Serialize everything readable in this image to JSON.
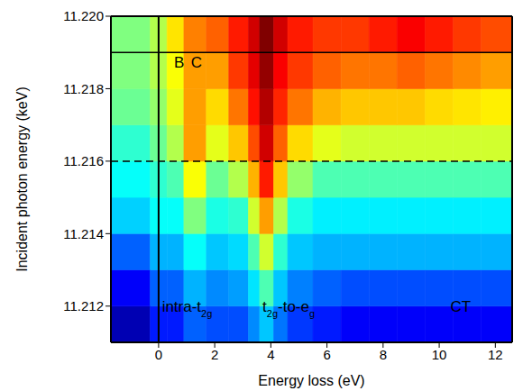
{
  "chart_data": {
    "type": "heatmap",
    "x_label": "Energy loss (eV)",
    "y_label": "Incident photon energy (keV)",
    "xlim": [
      -1.7,
      12.6
    ],
    "xticks": [
      0,
      2,
      4,
      6,
      8,
      10,
      12
    ],
    "ylim": [
      11.211,
      11.22
    ],
    "yticks": [
      11.212,
      11.214,
      11.216,
      11.218,
      {
        "value": 11.22,
        "label": "11.220"
      }
    ],
    "x_edges": [
      -1.7,
      -0.3,
      0.3,
      0.9,
      1.7,
      2.5,
      3.2,
      3.6,
      4.1,
      4.6,
      5.5,
      6.5,
      7.5,
      8.5,
      9.5,
      10.5,
      11.5,
      12.6
    ],
    "y_edges": [
      11.211,
      11.212,
      11.213,
      11.214,
      11.215,
      11.216,
      11.217,
      11.218,
      11.219,
      11.22
    ],
    "cells": [
      [
        0.05,
        0.15,
        0.15,
        0.22,
        0.2,
        0.2,
        0.26,
        0.32,
        0.24,
        0.18,
        0.15,
        0.12,
        0.12,
        0.12,
        0.12,
        0.12,
        0.12
      ],
      [
        0.12,
        0.22,
        0.22,
        0.3,
        0.26,
        0.28,
        0.35,
        0.45,
        0.32,
        0.25,
        0.22,
        0.2,
        0.2,
        0.2,
        0.2,
        0.2,
        0.2
      ],
      [
        0.22,
        0.3,
        0.3,
        0.38,
        0.32,
        0.34,
        0.45,
        0.58,
        0.42,
        0.32,
        0.3,
        0.3,
        0.3,
        0.3,
        0.3,
        0.3,
        0.3
      ],
      [
        0.33,
        0.38,
        0.38,
        0.5,
        0.4,
        0.42,
        0.58,
        0.72,
        0.55,
        0.4,
        0.36,
        0.36,
        0.36,
        0.36,
        0.36,
        0.36,
        0.36
      ],
      [
        0.38,
        0.42,
        0.45,
        0.62,
        0.48,
        0.55,
        0.7,
        0.85,
        0.68,
        0.52,
        0.45,
        0.45,
        0.45,
        0.45,
        0.45,
        0.45,
        0.45
      ],
      [
        0.42,
        0.48,
        0.55,
        0.72,
        0.6,
        0.68,
        0.8,
        0.92,
        0.78,
        0.66,
        0.6,
        0.58,
        0.58,
        0.58,
        0.58,
        0.58,
        0.58
      ],
      [
        0.48,
        0.52,
        0.6,
        0.72,
        0.66,
        0.76,
        0.86,
        0.95,
        0.84,
        0.76,
        0.7,
        0.68,
        0.68,
        0.68,
        0.66,
        0.65,
        0.64
      ],
      [
        0.5,
        0.55,
        0.62,
        0.72,
        0.72,
        0.82,
        0.9,
        0.98,
        0.88,
        0.82,
        0.78,
        0.76,
        0.76,
        0.78,
        0.76,
        0.74,
        0.72
      ],
      [
        0.5,
        0.55,
        0.65,
        0.75,
        0.78,
        0.85,
        0.92,
        1.0,
        0.92,
        0.85,
        0.82,
        0.82,
        0.85,
        0.88,
        0.85,
        0.82,
        0.8
      ]
    ],
    "color_range": [
      0,
      1
    ],
    "reference_lines": [
      {
        "x": 0,
        "line_style": "solid"
      },
      {
        "y": 11.219,
        "line_style": "solid"
      },
      {
        "y": 11.216,
        "line_style": "dashed"
      }
    ],
    "annotations": [
      {
        "parts": [
          {
            "text": "B"
          }
        ],
        "x": 0.55,
        "y": 11.21858
      },
      {
        "parts": [
          {
            "text": "C"
          }
        ],
        "x": 1.15,
        "y": 11.21858
      },
      {
        "parts": [
          {
            "text": "intra-t"
          },
          {
            "text": "2g",
            "sub": true
          }
        ],
        "x": 0.12,
        "y": 11.21185
      },
      {
        "parts": [
          {
            "text": "t"
          },
          {
            "text": "2g",
            "sub": true
          },
          {
            "text": "-to-e"
          },
          {
            "text": "g",
            "sub": true
          }
        ],
        "x": 3.7,
        "y": 11.21185
      },
      {
        "parts": [
          {
            "text": "CT"
          }
        ],
        "x": 10.4,
        "y": 11.21185
      }
    ]
  }
}
